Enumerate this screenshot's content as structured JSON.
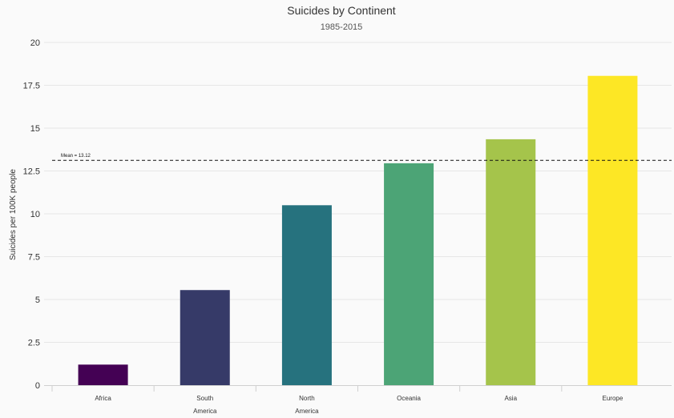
{
  "chart_data": {
    "type": "bar",
    "title": "Suicides by Continent",
    "subtitle": "1985-2015",
    "xlabel": "",
    "ylabel": "Suicides per 100K people",
    "ylim": [
      0,
      20
    ],
    "yticks": [
      "0",
      "2.5",
      "5",
      "7.5",
      "10",
      "12.5",
      "15",
      "17.5",
      "20"
    ],
    "ytick_values": [
      0,
      2.5,
      5,
      7.5,
      10,
      12.5,
      15,
      17.5,
      20
    ],
    "categories": [
      [
        "Africa"
      ],
      [
        "South",
        "America"
      ],
      [
        "North",
        "America"
      ],
      [
        "Oceania"
      ],
      [
        "Asia"
      ],
      [
        "Europe"
      ]
    ],
    "values": [
      1.2,
      5.55,
      10.5,
      12.95,
      14.35,
      18.05
    ],
    "colors": [
      "#440154",
      "#363a68",
      "#26727e",
      "#4ca476",
      "#a5c44b",
      "#fde725"
    ],
    "mean": {
      "value": 13.12,
      "label": "Mean = 13.12"
    },
    "grid": true,
    "legend": "none"
  }
}
